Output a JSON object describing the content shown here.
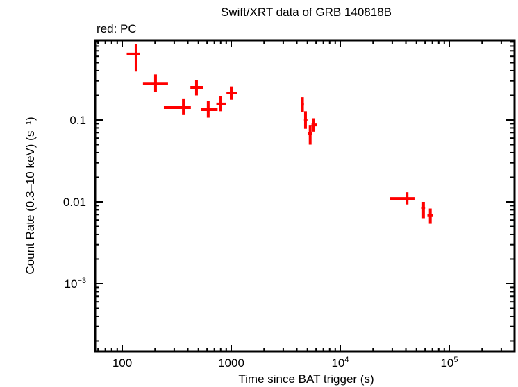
{
  "chart_data": {
    "type": "scatter",
    "title": "Swift/XRT data of GRB 140818B",
    "subtitle": "red: PC",
    "xlabel": "Time since BAT trigger (s)",
    "ylabel": "Count Rate (0.3–10 keV) (s⁻¹)",
    "xscale": "log",
    "yscale": "log",
    "xlim": [
      57,
      4000000
    ],
    "ylim": [
      0.000148,
      0.94
    ],
    "x_ticks": [
      {
        "value": 100,
        "label": "100"
      },
      {
        "value": 1000,
        "label": "1000"
      },
      {
        "value": 10000,
        "label": "10",
        "sup": "4"
      },
      {
        "value": 100000,
        "label": "10",
        "sup": "5"
      }
    ],
    "y_ticks": [
      {
        "value": 0.1,
        "label": "0.1"
      },
      {
        "value": 0.01,
        "label": "0.01"
      },
      {
        "value": 0.001,
        "label": "10",
        "sup": "−3"
      }
    ],
    "grid": false,
    "legend": {
      "position": "top-left",
      "text": "red: PC"
    },
    "series": [
      {
        "name": "PC",
        "color": "#ff0000",
        "points": [
          {
            "t": 134,
            "t_lo": 110,
            "t_hi": 145,
            "rate": 0.64,
            "rate_lo": 0.39,
            "rate_hi": 0.84
          },
          {
            "t": 202,
            "t_lo": 155,
            "t_hi": 263,
            "rate": 0.28,
            "rate_lo": 0.22,
            "rate_hi": 0.36
          },
          {
            "t": 364,
            "t_lo": 241,
            "t_hi": 426,
            "rate": 0.142,
            "rate_lo": 0.115,
            "rate_hi": 0.18
          },
          {
            "t": 480,
            "t_lo": 422,
            "t_hi": 550,
            "rate": 0.25,
            "rate_lo": 0.2,
            "rate_hi": 0.31
          },
          {
            "t": 615,
            "t_lo": 528,
            "t_hi": 750,
            "rate": 0.134,
            "rate_lo": 0.107,
            "rate_hi": 0.17
          },
          {
            "t": 801,
            "t_lo": 730,
            "t_hi": 900,
            "rate": 0.157,
            "rate_lo": 0.128,
            "rate_hi": 0.195
          },
          {
            "t": 1000,
            "t_lo": 905,
            "t_hi": 1140,
            "rate": 0.214,
            "rate_lo": 0.177,
            "rate_hi": 0.257
          },
          {
            "t": 4500,
            "t_lo": 4350,
            "t_hi": 4650,
            "rate": 0.156,
            "rate_lo": 0.125,
            "rate_hi": 0.19
          },
          {
            "t": 4800,
            "t_lo": 4650,
            "t_hi": 5000,
            "rate": 0.1,
            "rate_lo": 0.078,
            "rate_hi": 0.128
          },
          {
            "t": 5300,
            "t_lo": 5050,
            "t_hi": 5500,
            "rate": 0.068,
            "rate_lo": 0.05,
            "rate_hi": 0.087
          },
          {
            "t": 5700,
            "t_lo": 5450,
            "t_hi": 6100,
            "rate": 0.087,
            "rate_lo": 0.072,
            "rate_hi": 0.105
          },
          {
            "t": 41000,
            "t_lo": 28500,
            "t_hi": 48000,
            "rate": 0.011,
            "rate_lo": 0.0093,
            "rate_hi": 0.0131
          },
          {
            "t": 58000,
            "t_lo": 56000,
            "t_hi": 60000,
            "rate": 0.0084,
            "rate_lo": 0.0062,
            "rate_hi": 0.01
          },
          {
            "t": 67000,
            "t_lo": 63000,
            "t_hi": 71000,
            "rate": 0.0068,
            "rate_lo": 0.0054,
            "rate_hi": 0.0083
          }
        ]
      }
    ]
  }
}
